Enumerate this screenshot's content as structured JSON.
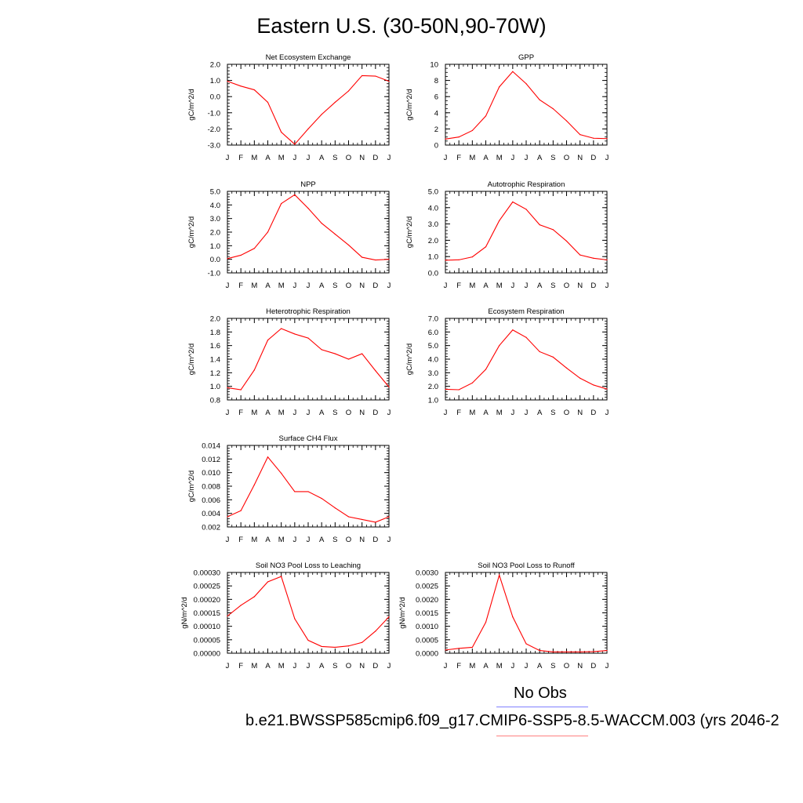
{
  "page": {
    "title": "Eastern U.S. (30-50N,90-70W)",
    "legend": {
      "obs_label": "No Obs",
      "obs_color": "#8080ff",
      "model_label": "b.e21.BWSSP585cmip6.f09_g17.CMIP6-SSP5-8.5-WACCM.003 (yrs 2046-2",
      "model_color": "#ff8080"
    },
    "series_color": "#ff0000"
  },
  "chart_data": [
    {
      "type": "line",
      "title": "Net Ecosystem Exchange",
      "ylabel": "gC/m^2/d",
      "xlabel": "",
      "categories": [
        "J",
        "F",
        "M",
        "A",
        "M",
        "J",
        "J",
        "A",
        "S",
        "O",
        "N",
        "D",
        "J"
      ],
      "values": [
        0.95,
        0.65,
        0.42,
        -0.35,
        -2.2,
        -2.95,
        -2.0,
        -1.1,
        -0.35,
        0.35,
        1.3,
        1.27,
        0.95
      ],
      "ylim": [
        -3.0,
        2.0
      ],
      "yticks": [
        "-3.0",
        "-2.0",
        "-1.0",
        "0.0",
        "1.0",
        "2.0"
      ],
      "minor_step": 0.2
    },
    {
      "type": "line",
      "title": "GPP",
      "ylabel": "gC/m^2/d",
      "xlabel": "",
      "categories": [
        "J",
        "F",
        "M",
        "A",
        "M",
        "J",
        "J",
        "A",
        "S",
        "O",
        "N",
        "D",
        "J"
      ],
      "values": [
        0.75,
        1.0,
        1.8,
        3.6,
        7.2,
        9.1,
        7.6,
        5.6,
        4.5,
        3.0,
        1.3,
        0.85,
        0.8
      ],
      "ylim": [
        0,
        10
      ],
      "yticks": [
        "0",
        "2",
        "4",
        "6",
        "8",
        "10"
      ],
      "minor_step": 0.5
    },
    {
      "type": "line",
      "title": "NPP",
      "ylabel": "gC/m^2/d",
      "xlabel": "",
      "categories": [
        "J",
        "F",
        "M",
        "A",
        "M",
        "J",
        "J",
        "A",
        "S",
        "O",
        "N",
        "D",
        "J"
      ],
      "values": [
        0.05,
        0.3,
        0.8,
        2.0,
        4.1,
        4.75,
        3.75,
        2.65,
        1.85,
        1.05,
        0.15,
        -0.05,
        0.0
      ],
      "ylim": [
        -1.0,
        5.0
      ],
      "yticks": [
        "-1.0",
        "0.0",
        "1.0",
        "2.0",
        "3.0",
        "4.0",
        "5.0"
      ],
      "minor_step": 0.2
    },
    {
      "type": "line",
      "title": "Autotrophic Respiration",
      "ylabel": "gC/m^2/d",
      "xlabel": "",
      "categories": [
        "J",
        "F",
        "M",
        "A",
        "M",
        "J",
        "J",
        "A",
        "S",
        "O",
        "N",
        "D",
        "J"
      ],
      "values": [
        0.78,
        0.8,
        0.98,
        1.6,
        3.2,
        4.35,
        3.9,
        2.95,
        2.65,
        1.95,
        1.1,
        0.9,
        0.8
      ],
      "ylim": [
        0.0,
        5.0
      ],
      "yticks": [
        "0.0",
        "1.0",
        "2.0",
        "3.0",
        "4.0",
        "5.0"
      ],
      "minor_step": 0.2
    },
    {
      "type": "line",
      "title": "Heterotrophic Respiration",
      "ylabel": "gC/m^2/d",
      "xlabel": "",
      "categories": [
        "J",
        "F",
        "M",
        "A",
        "M",
        "J",
        "J",
        "A",
        "S",
        "O",
        "N",
        "D",
        "J"
      ],
      "values": [
        0.98,
        0.95,
        1.24,
        1.68,
        1.85,
        1.77,
        1.71,
        1.54,
        1.48,
        1.4,
        1.48,
        1.23,
        0.99
      ],
      "ylim": [
        0.8,
        2.0
      ],
      "yticks": [
        "0.8",
        "1.0",
        "1.2",
        "1.4",
        "1.6",
        "1.8",
        "2.0"
      ],
      "minor_step": 0.04
    },
    {
      "type": "line",
      "title": "Ecosystem Respiration",
      "ylabel": "gC/m^2/d",
      "xlabel": "",
      "categories": [
        "J",
        "F",
        "M",
        "A",
        "M",
        "J",
        "J",
        "A",
        "S",
        "O",
        "N",
        "D",
        "J"
      ],
      "values": [
        1.78,
        1.75,
        2.25,
        3.25,
        5.0,
        6.15,
        5.6,
        4.55,
        4.15,
        3.35,
        2.6,
        2.1,
        1.8
      ],
      "ylim": [
        1.0,
        7.0
      ],
      "yticks": [
        "1.0",
        "2.0",
        "3.0",
        "4.0",
        "5.0",
        "6.0",
        "7.0"
      ],
      "minor_step": 0.2
    },
    {
      "type": "line",
      "title": "Surface CH4 Flux",
      "ylabel": "gC/m^2/d",
      "xlabel": "",
      "categories": [
        "J",
        "F",
        "M",
        "A",
        "M",
        "J",
        "J",
        "A",
        "S",
        "O",
        "N",
        "D",
        "J"
      ],
      "values": [
        0.0035,
        0.0044,
        0.0082,
        0.0123,
        0.0099,
        0.0072,
        0.0072,
        0.0062,
        0.0048,
        0.0035,
        0.0031,
        0.0027,
        0.0035
      ],
      "ylim": [
        0.002,
        0.014
      ],
      "yticks": [
        "0.002",
        "0.004",
        "0.006",
        "0.008",
        "0.010",
        "0.012",
        "0.014"
      ],
      "minor_step": 0.0004
    },
    {
      "type": "line",
      "title": "Soil NO3 Pool Loss to Leaching",
      "ylabel": "gN/m^2/d",
      "xlabel": "",
      "categories": [
        "J",
        "F",
        "M",
        "A",
        "M",
        "J",
        "J",
        "A",
        "S",
        "O",
        "N",
        "D",
        "J"
      ],
      "values": [
        0.000138,
        0.000178,
        0.00021,
        0.000265,
        0.000285,
        0.000128,
        4.8e-05,
        2.5e-05,
        2.2e-05,
        2.7e-05,
        4e-05,
        8.2e-05,
        0.000135
      ],
      "ylim": [
        0,
        0.0003
      ],
      "yticks": [
        "0.00000",
        "0.00005",
        "0.00010",
        "0.00015",
        "0.00020",
        "0.00025",
        "0.00030"
      ],
      "minor_step": 1e-05
    },
    {
      "type": "line",
      "title": "Soil NO3 Pool Loss to Runoff",
      "ylabel": "gN/m^2/d",
      "xlabel": "",
      "categories": [
        "J",
        "F",
        "M",
        "A",
        "M",
        "J",
        "J",
        "A",
        "S",
        "O",
        "N",
        "D",
        "J"
      ],
      "values": [
        0.00012,
        0.00018,
        0.00022,
        0.00115,
        0.0029,
        0.00135,
        0.00035,
        0.0001,
        5e-05,
        5e-05,
        5e-05,
        6e-05,
        0.0001
      ],
      "ylim": [
        0,
        0.003
      ],
      "yticks": [
        "0.0000",
        "0.0005",
        "0.0010",
        "0.0015",
        "0.0020",
        "0.0025",
        "0.0030"
      ],
      "minor_step": 0.0001
    }
  ]
}
